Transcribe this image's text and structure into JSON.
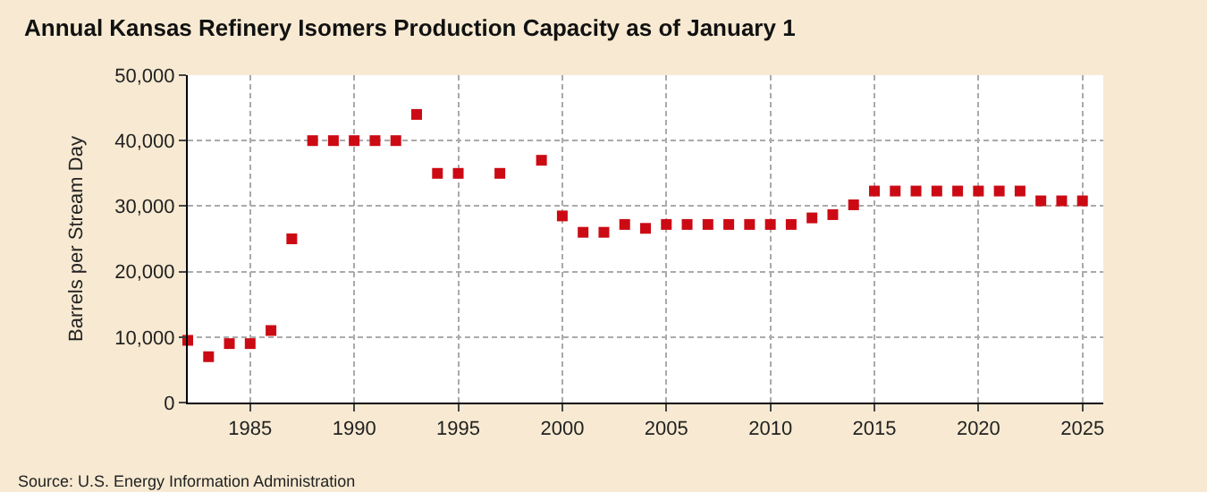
{
  "chart_data": {
    "type": "scatter",
    "title": "Annual Kansas Refinery Isomers Production Capacity as of January 1",
    "ylabel": "Barrels per Stream Day",
    "x": [
      1982,
      1983,
      1984,
      1985,
      1986,
      1987,
      1988,
      1989,
      1990,
      1991,
      1992,
      1993,
      1994,
      1995,
      1997,
      1999,
      2000,
      2001,
      2002,
      2003,
      2004,
      2005,
      2006,
      2007,
      2008,
      2009,
      2010,
      2011,
      2012,
      2013,
      2014,
      2015,
      2016,
      2017,
      2018,
      2019,
      2020,
      2021,
      2022,
      2023,
      2024,
      2025
    ],
    "series": [
      {
        "color": "#cc0a14",
        "values": [
          9500,
          7000,
          9000,
          9000,
          11000,
          25000,
          40000,
          40000,
          40000,
          40000,
          40000,
          44000,
          35000,
          35000,
          35000,
          37000,
          28500,
          26000,
          26000,
          27200,
          26600,
          27200,
          27200,
          27200,
          27200,
          27200,
          27200,
          27200,
          28200,
          28700,
          30200,
          32300,
          32300,
          32300,
          32300,
          32300,
          32300,
          32300,
          32300,
          30800,
          30800,
          30800
        ]
      }
    ],
    "xlim": [
      1982,
      2026
    ],
    "xticks": [
      1985,
      1990,
      1995,
      2000,
      2005,
      2010,
      2015,
      2020,
      2025
    ],
    "ylim": [
      0,
      50000
    ],
    "yticks": [
      {
        "value": 0,
        "label": "0"
      },
      {
        "value": 10000,
        "label": "10,000"
      },
      {
        "value": 20000,
        "label": "20,000"
      },
      {
        "value": 30000,
        "label": "30,000"
      },
      {
        "value": 40000,
        "label": "40,000"
      },
      {
        "value": 50000,
        "label": "50,000"
      }
    ],
    "grid": true,
    "marker": "square",
    "annotations": [
      "Source: U.S. Energy Information Administration"
    ]
  }
}
